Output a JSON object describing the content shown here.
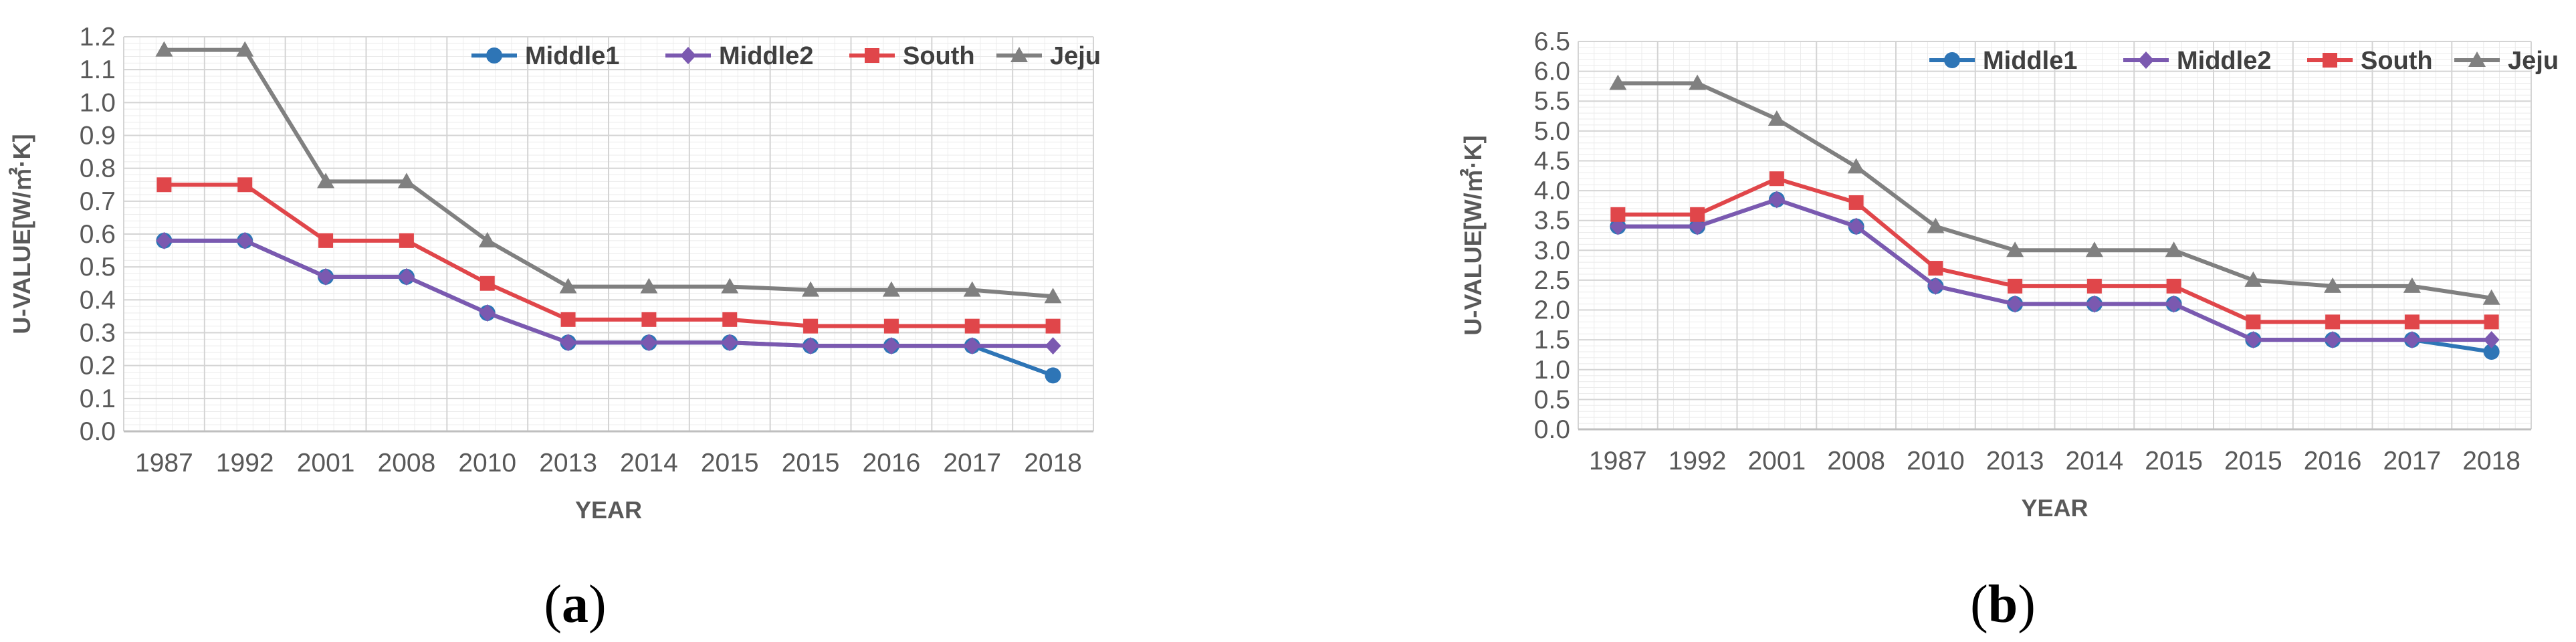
{
  "panels": {
    "a": {
      "label_open": "(",
      "label_letter": "a",
      "label_close": ")"
    },
    "b": {
      "label_open": "(",
      "label_letter": "b",
      "label_close": ")"
    }
  },
  "chart_data": [
    {
      "type": "line",
      "xlabel": "YEAR",
      "ylabel": "U-VALUE[W/㎡·K]",
      "ylim": [
        0,
        1.2
      ],
      "ystep": 0.1,
      "ytick_decimals": 1,
      "grid": "on",
      "legend_placement": "top-right",
      "categories": [
        "1987",
        "1992",
        "2001",
        "2008",
        "2010",
        "2013",
        "2014",
        "2015",
        "2015",
        "2016",
        "2017",
        "2018"
      ],
      "series": [
        {
          "name": "Middle1",
          "color": "#2E75B6",
          "marker": "circle",
          "values": [
            0.58,
            0.58,
            0.47,
            0.47,
            0.36,
            0.27,
            0.27,
            0.27,
            0.26,
            0.26,
            0.26,
            0.17
          ]
        },
        {
          "name": "Middle2",
          "color": "#7B59B0",
          "marker": "diamond",
          "values": [
            0.58,
            0.58,
            0.47,
            0.47,
            0.36,
            0.27,
            0.27,
            0.27,
            0.26,
            0.26,
            0.26,
            0.26
          ]
        },
        {
          "name": "South",
          "color": "#E0464A",
          "marker": "square",
          "values": [
            0.75,
            0.75,
            0.58,
            0.58,
            0.45,
            0.34,
            0.34,
            0.34,
            0.32,
            0.32,
            0.32,
            0.32
          ]
        },
        {
          "name": "Jeju",
          "color": "#808080",
          "marker": "triangle",
          "values": [
            1.16,
            1.16,
            0.76,
            0.76,
            0.58,
            0.44,
            0.44,
            0.44,
            0.43,
            0.43,
            0.43,
            0.41
          ]
        }
      ]
    },
    {
      "type": "line",
      "xlabel": "YEAR",
      "ylabel": "U-VALUE[W/㎡·K]",
      "ylim": [
        0,
        6.5
      ],
      "ystep": 0.5,
      "ytick_decimals": 1,
      "grid": "on",
      "legend_placement": "top-right",
      "categories": [
        "1987",
        "1992",
        "2001",
        "2008",
        "2010",
        "2013",
        "2014",
        "2015",
        "2015",
        "2016",
        "2017",
        "2018"
      ],
      "series": [
        {
          "name": "Middle1",
          "color": "#2E75B6",
          "marker": "circle",
          "values": [
            3.4,
            3.4,
            3.85,
            3.4,
            2.4,
            2.1,
            2.1,
            2.1,
            1.5,
            1.5,
            1.5,
            1.3
          ]
        },
        {
          "name": "Middle2",
          "color": "#7B59B0",
          "marker": "diamond",
          "values": [
            3.4,
            3.4,
            3.85,
            3.4,
            2.4,
            2.1,
            2.1,
            2.1,
            1.5,
            1.5,
            1.5,
            1.5
          ]
        },
        {
          "name": "South",
          "color": "#E0464A",
          "marker": "square",
          "values": [
            3.6,
            3.6,
            4.2,
            3.8,
            2.7,
            2.4,
            2.4,
            2.4,
            1.8,
            1.8,
            1.8,
            1.8
          ]
        },
        {
          "name": "Jeju",
          "color": "#808080",
          "marker": "triangle",
          "values": [
            5.8,
            5.8,
            5.2,
            4.4,
            3.4,
            3.0,
            3.0,
            3.0,
            2.5,
            2.4,
            2.4,
            2.2
          ]
        }
      ]
    }
  ]
}
